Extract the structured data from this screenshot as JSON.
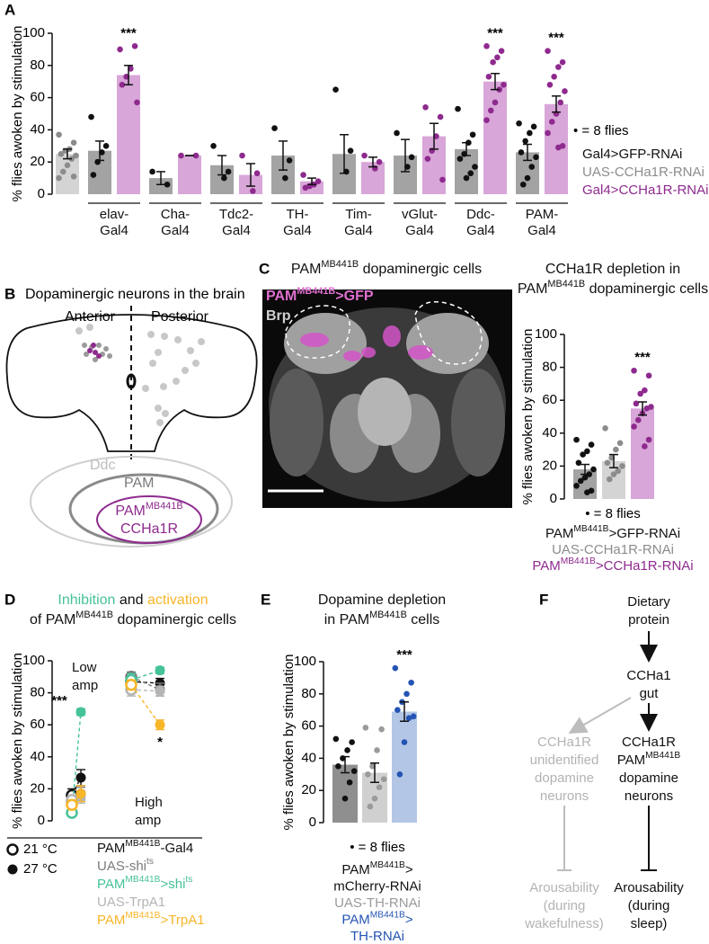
{
  "chart_data": [
    {
      "type": "bar",
      "panel": "A",
      "y_label": "% flies awoken by stimulation",
      "ylim": [
        0,
        100
      ],
      "yticks": [
        0,
        20,
        40,
        60,
        80,
        100
      ],
      "categories": [
        null,
        [
          "elav-",
          "Gal4"
        ],
        [
          "Cha-",
          "Gal4"
        ],
        [
          "Tdc2-",
          "Gal4"
        ],
        [
          "TH-",
          "Gal4"
        ],
        [
          "Tim-",
          "Gal4"
        ],
        [
          "vGlut-",
          "Gal4"
        ],
        [
          "Ddc-",
          "Gal4"
        ],
        [
          "PAM-",
          "Gal4"
        ]
      ],
      "dot_note": "• = 8 flies",
      "series": [
        {
          "name": "Gal4>GFP-RNAi",
          "color": "#a3a3a3",
          "dot_color": "#111111",
          "values": [
            null,
            27,
            10,
            18,
            24,
            25,
            24,
            28,
            26
          ],
          "errors": [
            null,
            6,
            4,
            6,
            9,
            12,
            10,
            4,
            5
          ],
          "points": [
            null,
            [
              48,
              30,
              26,
              20,
              12
            ],
            [
              14,
              6
            ],
            [
              30,
              14,
              10
            ],
            [
              41,
              21,
              10
            ],
            [
              65,
              27,
              14
            ],
            [
              38,
              23,
              17
            ],
            [
              53,
              37,
              32,
              25,
              22,
              17,
              13,
              10
            ],
            [
              44,
              42,
              38,
              33,
              26,
              23,
              17,
              10,
              6
            ]
          ]
        },
        {
          "name": "UAS-CCHa1R-RNAi",
          "color": "#d4d4d4",
          "dot_color": "#8c8c8c",
          "values": [
            25,
            null,
            null,
            null,
            null,
            null,
            null,
            null,
            null
          ],
          "errors": [
            3,
            null,
            null,
            null,
            null,
            null,
            null,
            null,
            null
          ],
          "points": [
            [
              37,
              32,
              28,
              27,
              25,
              24,
              22,
              18,
              14,
              10,
              11
            ],
            null,
            null,
            null,
            null,
            null,
            null,
            null,
            null
          ]
        },
        {
          "name": "Gal4>CCHa1R-RNAi",
          "color": "#d8a6d8",
          "dot_color": "#8e2a8e",
          "values": [
            null,
            74,
            24,
            12,
            8,
            20,
            36,
            70,
            56
          ],
          "errors": [
            null,
            6,
            0,
            7,
            2,
            3,
            8,
            5,
            5
          ],
          "points": [
            null,
            [
              90,
              92,
              78,
              73,
              68,
              57
            ],
            [
              24,
              24
            ],
            [
              24,
              13,
              2
            ],
            [
              12,
              8,
              6,
              5,
              4
            ],
            [
              24,
              20,
              16
            ],
            [
              54,
              48,
              36,
              27,
              22,
              9
            ],
            [
              92,
              89,
              85,
              82,
              73,
              68,
              65,
              57,
              52,
              46
            ],
            [
              89,
              82,
              79,
              73,
              68,
              64,
              57,
              50,
              45,
              38,
              30,
              29
            ]
          ],
          "significance": [
            null,
            "***",
            null,
            null,
            null,
            null,
            null,
            "***",
            "***"
          ]
        }
      ]
    },
    {
      "type": "bar",
      "title": [
        "CCHa1R depletion in",
        [
          "PAM",
          {
            "sup": "MB441B"
          },
          " dopaminergic cells"
        ]
      ],
      "y_label": "% flies awoken by stimulation",
      "ylim": [
        0,
        100
      ],
      "yticks": [
        0,
        20,
        40,
        60,
        80,
        100
      ],
      "categories": [
        null
      ],
      "dot_note": "• = 8 flies",
      "series": [
        {
          "name": [
            [
              "PAM",
              {
                "sup": "MB441B"
              },
              ">GFP-RNAi"
            ]
          ],
          "color": "#a3a3a3",
          "dot_color": "#111111",
          "values": [
            18
          ],
          "errors": [
            3
          ],
          "points": [
            [
              36,
              33,
              29,
              27,
              22,
              18,
              15,
              13,
              11,
              8,
              5,
              4
            ]
          ]
        },
        {
          "name": "UAS-CCHa1R-RNAi",
          "color": "#d4d4d4",
          "dot_color": "#8c8c8c",
          "values": [
            23
          ],
          "errors": [
            4
          ],
          "points": [
            [
              43,
              34,
              30,
              25,
              22,
              20,
              17,
              15,
              12
            ]
          ]
        },
        {
          "name": [
            [
              "PAM",
              {
                "sup": "MB441B"
              },
              ">CCHa1R-RNAi"
            ]
          ],
          "color": "#d8a6d8",
          "dot_color": "#8e2a8e",
          "values": [
            55
          ],
          "errors": [
            4
          ],
          "points": [
            [
              78,
              75,
              66,
              64,
              58,
              56,
              55,
              52,
              48,
              44,
              36,
              32
            ]
          ],
          "significance": [
            "***"
          ]
        }
      ]
    },
    {
      "type": "line",
      "panel": "D",
      "title": [
        [
          "Inhibition",
          " and ",
          "activation"
        ],
        [
          "of PAM",
          {
            "sup": "MB441B"
          },
          " dopaminergic cells"
        ]
      ],
      "y_label": "% flies awoken by stimulation",
      "ylim": [
        0,
        100
      ],
      "yticks": [
        0,
        20,
        40,
        60,
        80,
        100
      ],
      "groups": [
        [
          "Low",
          "amp"
        ],
        [
          "High",
          "amp"
        ]
      ],
      "temperatures": [
        "21 °C",
        "27 °C"
      ],
      "series": [
        {
          "name": [
            [
              "PAM",
              {
                "sup": "MB441B"
              },
              "-Gal4"
            ]
          ],
          "color": "#111111",
          "values": [
            [
              16,
              27
            ],
            [
              87,
              86
            ]
          ],
          "errors": [
            [
              4,
              5
            ],
            [
              4,
              3
            ]
          ]
        },
        {
          "name": [
            [
              "UAS-shi",
              {
                "sup": "ts"
              }
            ]
          ],
          "color": "#7a7a7a",
          "values": [
            [
              12,
              17
            ],
            [
              90,
              82
            ]
          ],
          "errors": [
            [
              3,
              4
            ],
            [
              3,
              4
            ]
          ]
        },
        {
          "name": [
            [
              "PAM",
              {
                "sup": "MB441B"
              },
              ">shi",
              {
                "sup": "ts"
              }
            ]
          ],
          "color": "#46c29a",
          "values": [
            [
              5,
              68
            ],
            [
              88,
              94
            ]
          ],
          "errors": [
            [
              2,
              2
            ],
            [
              4,
              2
            ]
          ],
          "significance": [
            [
              null,
              "***"
            ],
            [
              null,
              null
            ]
          ]
        },
        {
          "name": "UAS-TrpA1",
          "color": "#b5b5b5",
          "values": [
            [
              13,
              15
            ],
            [
              82,
              81
            ]
          ],
          "errors": [
            [
              3,
              4
            ],
            [
              4,
              3
            ]
          ]
        },
        {
          "name": [
            [
              "PAM",
              {
                "sup": "MB441B"
              },
              ">TrpA1"
            ]
          ],
          "color": "#f7b528",
          "values": [
            [
              10,
              17
            ],
            [
              85,
              60
            ]
          ],
          "errors": [
            [
              3,
              5
            ],
            [
              3,
              3
            ]
          ],
          "significance": [
            [
              null,
              null
            ],
            [
              null,
              "*"
            ]
          ]
        }
      ]
    },
    {
      "type": "bar",
      "panel": "E",
      "title": [
        "Dopamine depletion",
        [
          "in PAM",
          {
            "sup": "MB441B"
          },
          " cells"
        ]
      ],
      "y_label": "% flies awoken by stimulation",
      "ylim": [
        0,
        100
      ],
      "yticks": [
        0,
        20,
        40,
        60,
        80,
        100
      ],
      "categories": [
        null
      ],
      "dot_note": "• = 8 flies",
      "series": [
        {
          "name": [
            [
              "PAM",
              {
                "sup": "MB441B"
              },
              ">"
            ],
            "mCherry-RNAi"
          ],
          "color": "#8f8f8f",
          "dot_color": "#111111",
          "values": [
            36
          ],
          "errors": [
            5
          ],
          "points": [
            [
              52,
              50,
              45,
              40,
              35,
              32,
              25,
              15
            ]
          ]
        },
        {
          "name": "UAS-TH-RNAi",
          "color": "#d0d0d0",
          "dot_color": "#9a9a9a",
          "values": [
            31
          ],
          "errors": [
            6
          ],
          "points": [
            [
              59,
              58,
              45,
              35,
              30,
              27,
              22,
              15,
              10
            ]
          ]
        },
        {
          "name": [
            [
              "PAM",
              {
                "sup": "MB441B"
              },
              ">"
            ],
            "TH-RNAi"
          ],
          "color": "#b3c6e6",
          "dot_color": "#2454b4",
          "values": [
            69
          ],
          "errors": [
            6
          ],
          "points": [
            [
              96,
              87,
              80,
              75,
              70,
              66,
              65,
              50,
              30
            ]
          ],
          "significance": [
            "***"
          ]
        }
      ]
    }
  ],
  "diagram_b": {
    "panel": "B",
    "title": "Dopaminergic neurons in the brain",
    "left": "Anterior",
    "right": "Posterior",
    "venn": [
      "Ddc",
      "PAM",
      [
        [
          "PAM",
          {
            "sup": "MB441B"
          }
        ],
        "CCHa1R"
      ]
    ]
  },
  "image_c": {
    "panel": "C",
    "title": [
      [
        "PAM",
        {
          "sup": "MB441B"
        },
        " dopaminergic cells"
      ]
    ],
    "channels": [
      [
        [
          "PAM",
          {
            "sup": "MB441B"
          },
          ">GFP"
        ]
      ],
      "Brp"
    ]
  },
  "diagram_f": {
    "panel": "F",
    "nodes": [
      [
        "Dietary",
        "protein"
      ],
      [
        "CCHa1",
        "gut"
      ],
      [
        "CCHa1R",
        "unidentified",
        "dopamine",
        "neurons"
      ],
      [
        "CCHa1R",
        [
          "PAM",
          {
            "sup": "MB441B"
          }
        ],
        "dopamine",
        "neurons"
      ],
      [
        "Arousability",
        "(during",
        "wakefulness)"
      ],
      [
        "Arousability",
        "(during",
        "sleep)"
      ]
    ]
  }
}
